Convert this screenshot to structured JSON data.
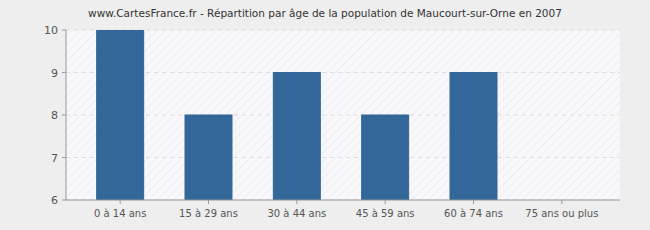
{
  "chart_data": {
    "type": "bar",
    "title": "www.CartesFrance.fr - Répartition par âge de la population de Maucourt-sur-Orne en 2007",
    "categories": [
      "0 à 14 ans",
      "15 à 29 ans",
      "30 à 44 ans",
      "45 à 59 ans",
      "60 à 74 ans",
      "75 ans ou plus"
    ],
    "values": [
      10,
      8,
      9,
      8,
      9,
      6
    ],
    "color": "#336699",
    "ylim": [
      6,
      10
    ],
    "yticks": [
      6,
      7,
      8,
      9,
      10
    ],
    "grid": true
  }
}
